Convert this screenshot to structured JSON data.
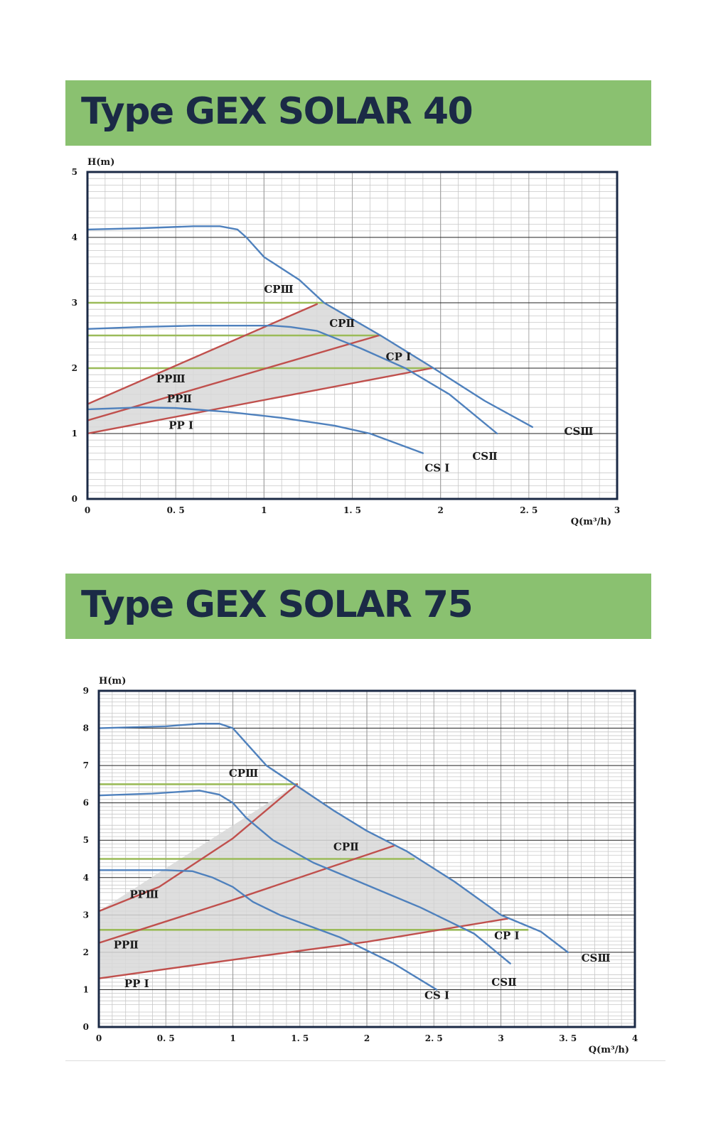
{
  "sections": [
    {
      "title": "Type GEX SOLAR 40"
    },
    {
      "title": "Type GEX SOLAR 75"
    }
  ],
  "colors": {
    "banner": "#8ac170",
    "title_text": "#1b2a46",
    "cs_curve": "#4f81bd",
    "pp_curve": "#c0504d",
    "cp_line": "#9bbb59",
    "shade": "#d8d8d8",
    "frame": "#1b2a46"
  },
  "chart_data": [
    {
      "type": "line",
      "title": "Type GEX SOLAR 40",
      "xlabel": "Q(m³/h)",
      "ylabel": "H(m)",
      "xlim": [
        0,
        3
      ],
      "ylim": [
        0,
        5
      ],
      "x_ticks": [
        "0",
        "0. 5",
        "1",
        "1. 5",
        "2",
        "2. 5",
        "3"
      ],
      "y_ticks": [
        "0",
        "1",
        "2",
        "3",
        "4",
        "5"
      ],
      "series": [
        {
          "name": "CSⅢ",
          "kind": "cs",
          "points": [
            [
              0,
              4.12
            ],
            [
              0.3,
              4.14
            ],
            [
              0.6,
              4.17
            ],
            [
              0.75,
              4.17
            ],
            [
              0.85,
              4.12
            ],
            [
              0.9,
              4.0
            ],
            [
              1.0,
              3.7
            ],
            [
              1.2,
              3.35
            ],
            [
              1.34,
              3.0
            ],
            [
              1.66,
              2.5
            ],
            [
              1.96,
              2.0
            ],
            [
              2.25,
              1.5
            ],
            [
              2.52,
              1.1
            ]
          ]
        },
        {
          "name": "CSⅡ",
          "kind": "cs",
          "points": [
            [
              0,
              2.6
            ],
            [
              0.3,
              2.63
            ],
            [
              0.6,
              2.65
            ],
            [
              0.85,
              2.65
            ],
            [
              1.05,
              2.65
            ],
            [
              1.15,
              2.63
            ],
            [
              1.3,
              2.57
            ],
            [
              1.55,
              2.3
            ],
            [
              1.8,
              2.0
            ],
            [
              2.05,
              1.6
            ],
            [
              2.32,
              1.0
            ]
          ]
        },
        {
          "name": "CSⅠ",
          "kind": "cs",
          "points": [
            [
              0,
              1.37
            ],
            [
              0.3,
              1.4
            ],
            [
              0.5,
              1.39
            ],
            [
              0.8,
              1.33
            ],
            [
              1.1,
              1.24
            ],
            [
              1.4,
              1.12
            ],
            [
              1.6,
              1.0
            ],
            [
              1.9,
              0.7
            ]
          ]
        },
        {
          "name": "PPⅢ",
          "kind": "pp",
          "points": [
            [
              0,
              1.45
            ],
            [
              1.3,
              2.98
            ]
          ]
        },
        {
          "name": "PPⅡ",
          "kind": "pp",
          "points": [
            [
              0,
              1.2
            ],
            [
              1.65,
              2.5
            ]
          ]
        },
        {
          "name": "PPⅠ",
          "kind": "pp",
          "points": [
            [
              0,
              1.0
            ],
            [
              1.95,
              2.0
            ]
          ]
        },
        {
          "name": "CPⅢ",
          "kind": "cp",
          "points": [
            [
              0,
              3.0
            ],
            [
              1.34,
              3.0
            ]
          ]
        },
        {
          "name": "CPⅡ",
          "kind": "cp",
          "points": [
            [
              0,
              2.5
            ],
            [
              1.66,
              2.5
            ]
          ]
        },
        {
          "name": "CPⅠ",
          "kind": "cp",
          "points": [
            [
              0,
              2.0
            ],
            [
              1.96,
              2.0
            ]
          ]
        }
      ],
      "shaded_region": [
        [
          0,
          1.0
        ],
        [
          0,
          1.45
        ],
        [
          1.3,
          2.98
        ],
        [
          1.34,
          3.0
        ],
        [
          1.66,
          2.5
        ],
        [
          1.96,
          2.0
        ]
      ],
      "labels": [
        {
          "text": "CPⅢ",
          "x": 1.0,
          "y": 3.15
        },
        {
          "text": "CPⅡ",
          "x": 1.37,
          "y": 2.63
        },
        {
          "text": "CP Ⅰ",
          "x": 1.69,
          "y": 2.12
        },
        {
          "text": "PPⅢ",
          "x": 0.39,
          "y": 1.78
        },
        {
          "text": "PPⅡ",
          "x": 0.45,
          "y": 1.48
        },
        {
          "text": "PP Ⅰ",
          "x": 0.46,
          "y": 1.07
        },
        {
          "text": "CSⅢ",
          "x": 2.7,
          "y": 0.98
        },
        {
          "text": "CSⅡ",
          "x": 2.18,
          "y": 0.6
        },
        {
          "text": "CS Ⅰ",
          "x": 1.91,
          "y": 0.42
        }
      ]
    },
    {
      "type": "line",
      "title": "Type GEX SOLAR 75",
      "xlabel": "Q(m³/h)",
      "ylabel": "H(m)",
      "xlim": [
        0,
        4
      ],
      "ylim": [
        0,
        9
      ],
      "x_ticks": [
        "0",
        "0. 5",
        "1",
        "1. 5",
        "2",
        "2. 5",
        "3",
        "3. 5",
        "4"
      ],
      "y_ticks": [
        "0",
        "1",
        "2",
        "3",
        "4",
        "5",
        "6",
        "7",
        "8",
        "9"
      ],
      "series": [
        {
          "name": "CSⅢ",
          "kind": "cs",
          "points": [
            [
              0,
              8.0
            ],
            [
              0.5,
              8.05
            ],
            [
              0.75,
              8.12
            ],
            [
              0.9,
              8.12
            ],
            [
              1.0,
              8.0
            ],
            [
              1.1,
              7.6
            ],
            [
              1.25,
              7.0
            ],
            [
              1.5,
              6.4
            ],
            [
              1.75,
              5.8
            ],
            [
              2.0,
              5.25
            ],
            [
              2.3,
              4.7
            ],
            [
              2.65,
              3.9
            ],
            [
              3.0,
              3.0
            ],
            [
              3.3,
              2.55
            ],
            [
              3.5,
              2.0
            ]
          ]
        },
        {
          "name": "CSⅡ",
          "kind": "cs",
          "points": [
            [
              0,
              6.2
            ],
            [
              0.4,
              6.25
            ],
            [
              0.75,
              6.33
            ],
            [
              0.9,
              6.22
            ],
            [
              1.0,
              6.0
            ],
            [
              1.1,
              5.6
            ],
            [
              1.3,
              5.0
            ],
            [
              1.6,
              4.4
            ],
            [
              2.0,
              3.8
            ],
            [
              2.4,
              3.2
            ],
            [
              2.8,
              2.5
            ],
            [
              3.07,
              1.7
            ]
          ]
        },
        {
          "name": "CSⅠ",
          "kind": "cs",
          "points": [
            [
              0,
              4.2
            ],
            [
              0.5,
              4.2
            ],
            [
              0.7,
              4.17
            ],
            [
              0.85,
              4.0
            ],
            [
              1.0,
              3.75
            ],
            [
              1.15,
              3.35
            ],
            [
              1.35,
              3.0
            ],
            [
              1.8,
              2.4
            ],
            [
              2.2,
              1.7
            ],
            [
              2.52,
              1.0
            ]
          ]
        },
        {
          "name": "PPⅢ",
          "kind": "pp",
          "points": [
            [
              0,
              3.1
            ],
            [
              0.45,
              3.75
            ],
            [
              1.0,
              5.05
            ],
            [
              1.48,
              6.5
            ]
          ]
        },
        {
          "name": "PPⅡ",
          "kind": "pp",
          "points": [
            [
              0,
              2.25
            ],
            [
              1.0,
              3.4
            ],
            [
              2.2,
              4.85
            ]
          ]
        },
        {
          "name": "PPⅠ",
          "kind": "pp",
          "points": [
            [
              0,
              1.3
            ],
            [
              1.0,
              1.8
            ],
            [
              2.0,
              2.28
            ],
            [
              3.05,
              2.9
            ]
          ]
        },
        {
          "name": "CPⅢ",
          "kind": "cp",
          "points": [
            [
              0,
              6.5
            ],
            [
              1.48,
              6.5
            ]
          ]
        },
        {
          "name": "CPⅡ",
          "kind": "cp",
          "points": [
            [
              0,
              4.5
            ],
            [
              2.35,
              4.5
            ]
          ]
        },
        {
          "name": "CPⅠ",
          "kind": "cp",
          "points": [
            [
              0,
              2.6
            ],
            [
              3.2,
              2.6
            ]
          ]
        }
      ],
      "shaded_region": [
        [
          0,
          1.3
        ],
        [
          0,
          3.1
        ],
        [
          1.48,
          6.5
        ],
        [
          1.75,
          5.8
        ],
        [
          2.0,
          5.25
        ],
        [
          2.3,
          4.7
        ],
        [
          2.65,
          3.9
        ],
        [
          3.0,
          3.0
        ],
        [
          3.05,
          2.9
        ],
        [
          2.0,
          2.28
        ],
        [
          1.0,
          1.8
        ]
      ],
      "labels": [
        {
          "text": "CPⅢ",
          "x": 0.97,
          "y": 6.7
        },
        {
          "text": "CPⅡ",
          "x": 1.75,
          "y": 4.73
        },
        {
          "text": "CP Ⅰ",
          "x": 2.95,
          "y": 2.35
        },
        {
          "text": "PPⅢ",
          "x": 0.23,
          "y": 3.45
        },
        {
          "text": "PPⅡ",
          "x": 0.11,
          "y": 2.1
        },
        {
          "text": "PP Ⅰ",
          "x": 0.19,
          "y": 1.07
        },
        {
          "text": "CSⅢ",
          "x": 3.6,
          "y": 1.75
        },
        {
          "text": "CSⅡ",
          "x": 2.93,
          "y": 1.1
        },
        {
          "text": "CS Ⅰ",
          "x": 2.43,
          "y": 0.75
        }
      ]
    }
  ]
}
